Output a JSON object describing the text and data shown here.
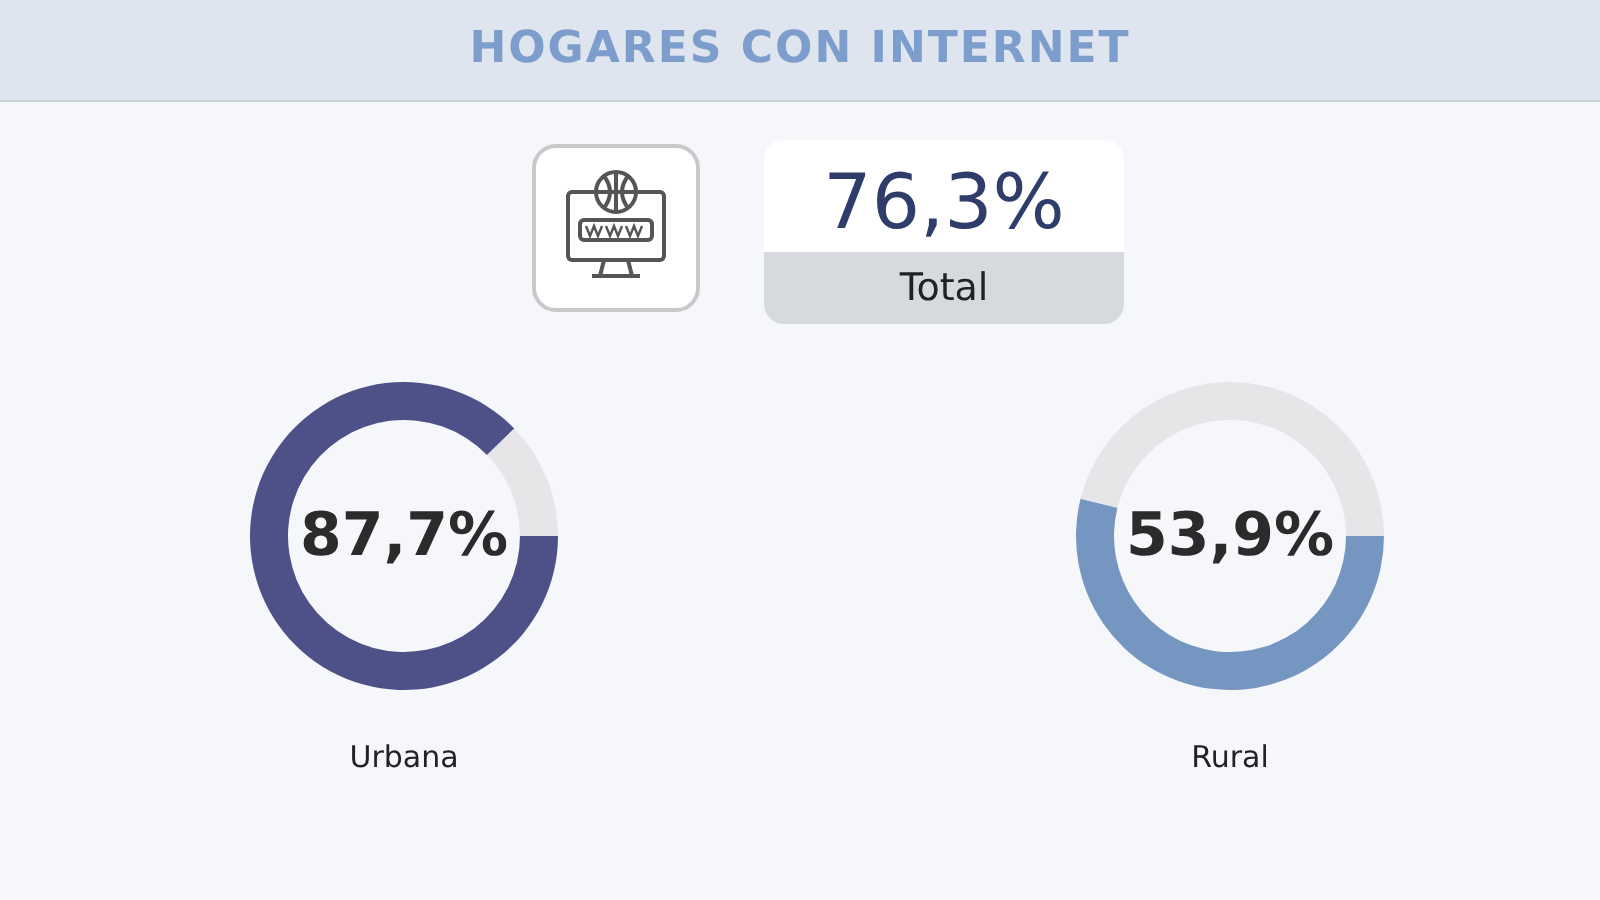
{
  "chart_data": [
    {
      "type": "other",
      "title": "HOGARES CON INTERNET",
      "annotations": [
        "76,3%",
        "Total"
      ]
    },
    {
      "type": "donut",
      "categories": [
        "Urbana",
        null
      ],
      "values": [
        87.7,
        12.3
      ],
      "colors": [
        "#4e5088",
        "#e6e6e8"
      ],
      "value_labels": [
        "87,7%",
        null
      ]
    },
    {
      "type": "donut",
      "categories": [
        "Rural",
        null
      ],
      "values": [
        53.9,
        46.1
      ],
      "colors": [
        "#7596c0",
        "#e6e6e8"
      ],
      "value_labels": [
        "53,9%",
        null
      ]
    }
  ]
}
